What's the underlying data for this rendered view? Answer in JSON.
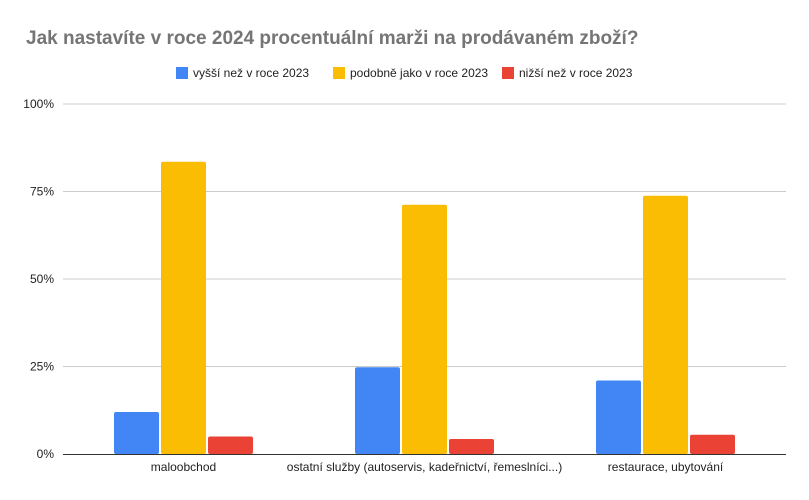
{
  "chart_data": {
    "type": "bar",
    "title": "Jak nastavíte v roce 2024 procentuální marži na prodávaném zboží?",
    "xlabel": "",
    "ylabel": "",
    "categories": [
      "maloobchod",
      "ostatní služby (autoservis, kadeřnictví, řemeslníci...)",
      "restaurace, ubytování"
    ],
    "series": [
      {
        "name": "vyšší než v roce 2023",
        "color": "#4285f4",
        "values": [
          12,
          24.8,
          21
        ]
      },
      {
        "name": "podobně jako v roce 2023",
        "color": "#fbbc04",
        "values": [
          83.5,
          71.2,
          73.8
        ]
      },
      {
        "name": "nižší než v roce 2023",
        "color": "#ea4335",
        "values": [
          5,
          4.3,
          5.5
        ]
      }
    ],
    "ylim": [
      0,
      100
    ],
    "yticks": [
      0,
      25,
      50,
      75,
      100
    ],
    "ytick_labels": [
      "0%",
      "25%",
      "50%",
      "75%",
      "100%"
    ],
    "grid": true,
    "legend_position": "top"
  }
}
